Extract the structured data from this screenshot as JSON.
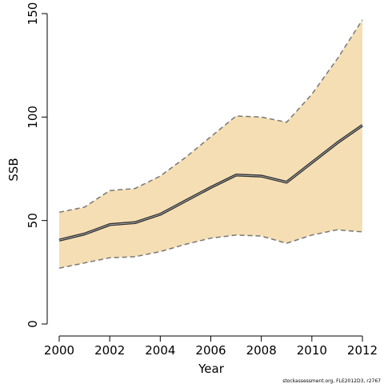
{
  "chart_data": {
    "type": "area",
    "xlabel": "Year",
    "ylabel": "SSB",
    "xlim": [
      2000,
      2012
    ],
    "ylim": [
      0,
      150
    ],
    "x_ticks": [
      2000,
      2002,
      2004,
      2006,
      2008,
      2010,
      2012
    ],
    "y_ticks": [
      0,
      50,
      100,
      150
    ],
    "grid": false,
    "x": [
      2000,
      2001,
      2002,
      2003,
      2004,
      2005,
      2006,
      2007,
      2008,
      2009,
      2010,
      2011,
      2012
    ],
    "series": [
      {
        "role": "estimate",
        "values": [
          40.5,
          43.5,
          48.0,
          49.0,
          53.0,
          59.5,
          66.0,
          72.0,
          71.5,
          68.5,
          78.0,
          87.5,
          96.0
        ]
      },
      {
        "role": "upper",
        "values": [
          54.0,
          56.5,
          64.5,
          65.5,
          71.5,
          80.5,
          90.5,
          100.5,
          100.0,
          97.5,
          111.0,
          128.0,
          147.0
        ]
      },
      {
        "role": "lower",
        "values": [
          27.0,
          29.5,
          32.0,
          32.5,
          35.0,
          38.5,
          41.5,
          43.0,
          42.5,
          39.0,
          43.0,
          45.5,
          44.5
        ]
      }
    ],
    "colors": {
      "band": "#f5deb3",
      "bound": "#777777",
      "line": "#333333",
      "highlight": "#bbbbbb"
    }
  },
  "footer": "stockassessment.org, FLE2012D3, r2767"
}
